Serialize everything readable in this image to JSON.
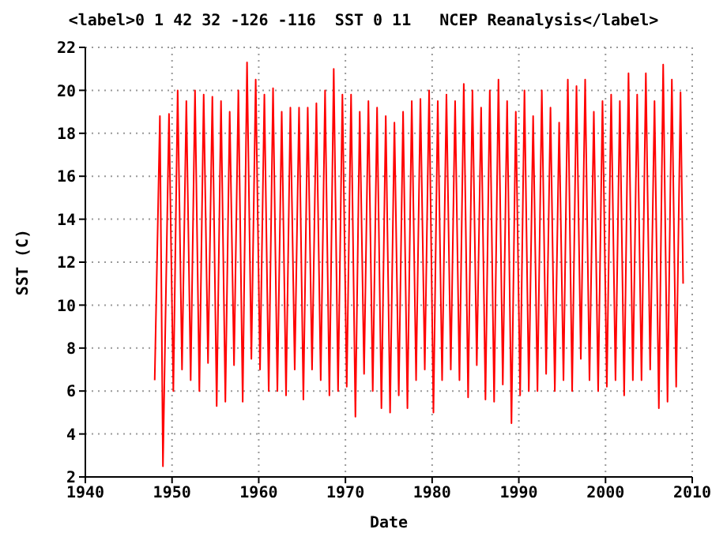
{
  "chart_data": {
    "type": "line",
    "title": "<label>0 1 42 32 -126 -116  SST 0 11   NCEP Reanalysis</label>",
    "xlabel": "Date",
    "ylabel": "SST (C)",
    "xlim": [
      1940,
      2010
    ],
    "xticks": [
      1940,
      1950,
      1960,
      1970,
      1980,
      1990,
      2000,
      2010
    ],
    "ylim": [
      2,
      22
    ],
    "yticks": [
      2,
      4,
      6,
      8,
      10,
      12,
      14,
      16,
      18,
      20,
      22
    ],
    "grid": true,
    "legend": false,
    "marker": "none",
    "line_style": "solid",
    "series": [
      {
        "color": "#ff0000",
        "x": [
          1948.0,
          1948.6,
          1948.95,
          1949.65,
          1950.15,
          1950.65,
          1951.15,
          1951.65,
          1952.15,
          1952.65,
          1953.15,
          1953.65,
          1954.15,
          1954.65,
          1955.15,
          1955.65,
          1956.15,
          1956.65,
          1957.15,
          1957.65,
          1958.15,
          1958.65,
          1959.15,
          1959.65,
          1960.15,
          1960.65,
          1961.15,
          1961.65,
          1962.15,
          1962.65,
          1963.15,
          1963.65,
          1964.15,
          1964.65,
          1965.15,
          1965.65,
          1966.15,
          1966.65,
          1967.15,
          1967.65,
          1968.15,
          1968.65,
          1969.15,
          1969.65,
          1970.15,
          1970.65,
          1971.15,
          1971.65,
          1972.15,
          1972.65,
          1973.15,
          1973.65,
          1974.15,
          1974.65,
          1975.15,
          1975.65,
          1976.15,
          1976.65,
          1977.15,
          1977.65,
          1978.15,
          1978.65,
          1979.15,
          1979.65,
          1980.15,
          1980.65,
          1981.15,
          1981.65,
          1982.15,
          1982.65,
          1983.15,
          1983.65,
          1984.15,
          1984.65,
          1985.15,
          1985.65,
          1986.15,
          1986.65,
          1987.15,
          1987.65,
          1988.15,
          1988.65,
          1989.15,
          1989.65,
          1990.15,
          1990.65,
          1991.15,
          1991.65,
          1992.15,
          1992.65,
          1993.15,
          1993.65,
          1994.15,
          1994.65,
          1995.15,
          1995.65,
          1996.15,
          1996.65,
          1997.15,
          1997.65,
          1998.15,
          1998.65,
          1999.15,
          1999.65,
          2000.15,
          2000.65,
          2001.15,
          2001.65,
          2002.15,
          2002.65,
          2003.15,
          2003.65,
          2004.15,
          2004.65,
          2005.15,
          2005.65,
          2006.15,
          2006.65,
          2007.15,
          2007.65,
          2008.15,
          2008.65,
          2008.95
        ],
        "values": [
          6.5,
          18.8,
          2.5,
          18.9,
          6.0,
          20.0,
          7.0,
          19.5,
          6.5,
          20.0,
          6.0,
          19.8,
          7.3,
          19.7,
          5.3,
          19.5,
          5.5,
          19.0,
          7.2,
          20.0,
          5.5,
          21.3,
          7.5,
          20.5,
          7.0,
          19.8,
          6.0,
          20.1,
          6.0,
          19.0,
          5.8,
          19.2,
          7.0,
          19.2,
          5.6,
          19.2,
          7.0,
          19.4,
          6.5,
          20.0,
          5.8,
          21.0,
          6.0,
          19.8,
          6.2,
          19.8,
          4.8,
          19.0,
          6.8,
          19.5,
          6.0,
          19.2,
          5.2,
          18.8,
          5.0,
          18.5,
          5.8,
          19.0,
          5.2,
          19.5,
          6.5,
          19.6,
          7.0,
          20.0,
          5.0,
          19.5,
          6.5,
          19.8,
          7.0,
          19.5,
          6.5,
          20.3,
          5.7,
          20.0,
          7.2,
          19.2,
          5.6,
          20.0,
          5.5,
          20.5,
          6.3,
          19.5,
          4.5,
          19.0,
          5.8,
          20.0,
          6.0,
          18.8,
          6.0,
          20.0,
          6.8,
          19.2,
          6.0,
          18.5,
          6.5,
          20.5,
          6.0,
          20.2,
          7.5,
          20.5,
          6.5,
          19.0,
          6.0,
          19.5,
          6.2,
          19.8,
          6.5,
          19.5,
          5.8,
          20.8,
          6.5,
          19.8,
          6.5,
          20.8,
          7.0,
          19.5,
          5.2,
          21.2,
          5.5,
          20.5,
          6.2,
          19.9,
          11.0
        ]
      }
    ]
  }
}
